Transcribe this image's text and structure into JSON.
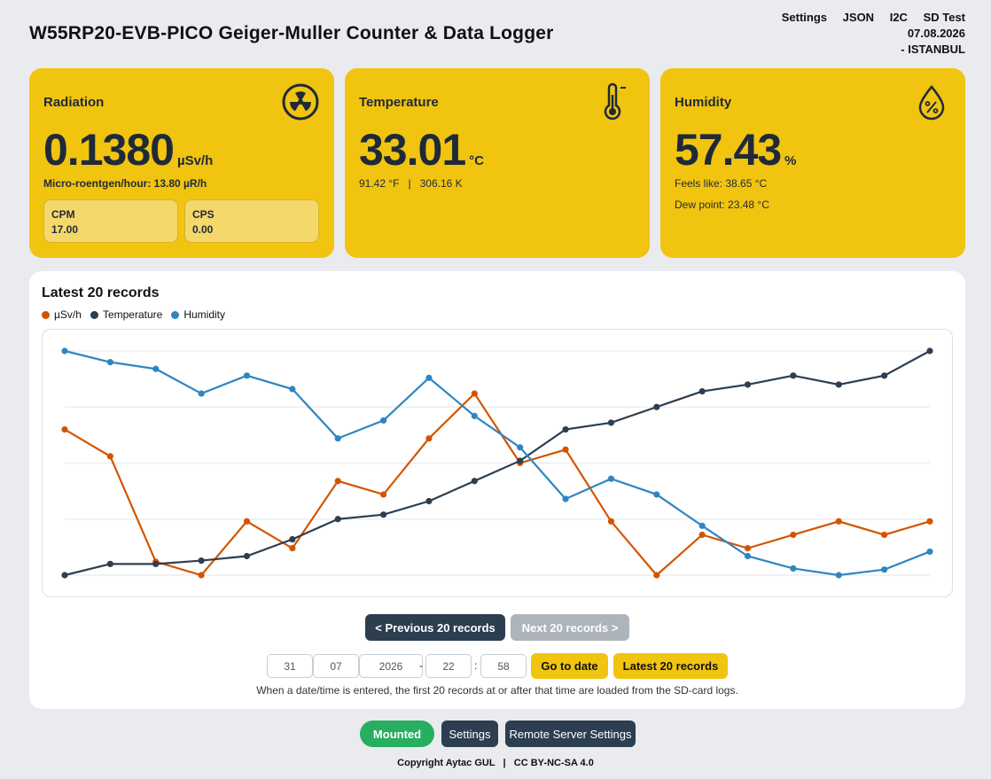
{
  "header": {
    "title": "W55RP20-EVB-PICO Geiger-Muller Counter & Data Logger",
    "nav": [
      "Settings",
      "JSON",
      "I2C",
      "SD Test"
    ],
    "date": "07.08.2026",
    "location": "-  ISTANBUL"
  },
  "radiation": {
    "title": "Radiation",
    "icon": "radiation-icon",
    "value": "0.1380",
    "unit": "µSv/h",
    "micro_roentgen": "Micro-roentgen/hour: 13.80 µR/h",
    "cpm_label": "CPM",
    "cpm_value": "17.00",
    "cps_label": "CPS",
    "cps_value": "0.00"
  },
  "temperature": {
    "title": "Temperature",
    "icon": "thermometer-icon",
    "value": "33.01",
    "unit": "°C",
    "conversions": "91.42 °F   |   306.16 K"
  },
  "humidity": {
    "title": "Humidity",
    "icon": "humidity-drop-icon",
    "value": "57.43",
    "unit": "%",
    "feels_like": "Feels like: 38.65 °C",
    "dew_point": "Dew point: 23.48 °C"
  },
  "records": {
    "title": "Latest 20 records",
    "prev_label": "< Previous 20 records",
    "next_label": "Next 20 records >",
    "day": "31",
    "month": "07",
    "year": "2026",
    "hour": "22",
    "minute": "58",
    "date_sep": "-",
    "time_sep": ":",
    "goto_label": "Go to date",
    "latest_label": "Latest 20 records",
    "hint": "When a date/time is entered, the first 20 records at or after that time are loaded from the SD-card logs."
  },
  "chart_data": {
    "type": "line",
    "x": [
      1,
      2,
      3,
      4,
      5,
      6,
      7,
      8,
      9,
      10,
      11,
      12,
      13,
      14,
      15,
      16,
      17,
      18,
      19,
      20
    ],
    "series": [
      {
        "name": "µSv/h",
        "color": "#d35400",
        "values": [
          0.65,
          0.53,
          0.06,
          0.0,
          0.24,
          0.12,
          0.42,
          0.36,
          0.61,
          0.81,
          0.5,
          0.56,
          0.24,
          0.0,
          0.18,
          0.12,
          0.18,
          0.24,
          0.18,
          0.24
        ]
      },
      {
        "name": "Temperature",
        "color": "#2c3e50",
        "values": [
          0.0,
          0.05,
          0.05,
          0.065,
          0.085,
          0.16,
          0.25,
          0.27,
          0.33,
          0.42,
          0.51,
          0.65,
          0.68,
          0.75,
          0.82,
          0.85,
          0.89,
          0.85,
          0.89,
          1.0
        ]
      },
      {
        "name": "Humidity",
        "color": "#2e86c1",
        "values": [
          1.0,
          0.95,
          0.92,
          0.81,
          0.89,
          0.83,
          0.61,
          0.69,
          0.88,
          0.71,
          0.57,
          0.34,
          0.43,
          0.36,
          0.22,
          0.085,
          0.03,
          0.0,
          0.025,
          0.105
        ]
      }
    ],
    "grid": true,
    "legend": "top-left",
    "ylim": [
      0,
      1
    ]
  },
  "status": {
    "mounted_label": "Mounted",
    "settings_label": "Settings",
    "remote_label": "Remote Server Settings"
  },
  "footer": {
    "copyright": "Copyright Aytac GUL   |   CC BY-NC-SA 4.0"
  }
}
